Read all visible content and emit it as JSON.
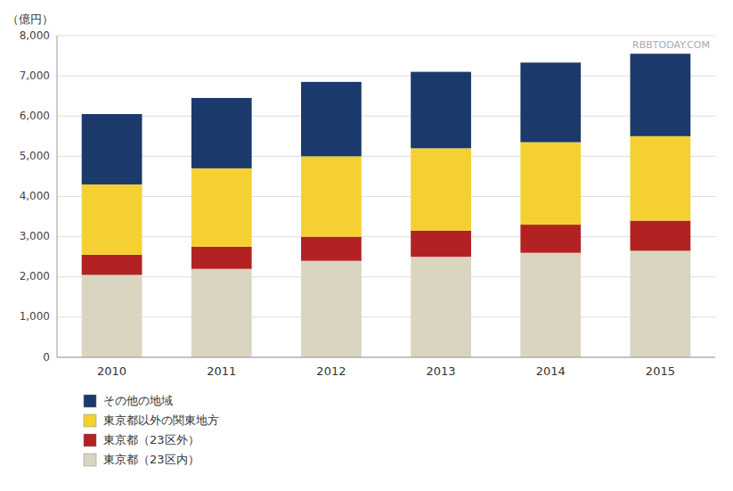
{
  "chart_data": {
    "type": "bar",
    "stacked": true,
    "categories": [
      "2010",
      "2011",
      "2012",
      "2013",
      "2014",
      "2015"
    ],
    "series": [
      {
        "name": "東京都（23区内）",
        "color": "#D9D5C0",
        "values": [
          2050,
          2200,
          2400,
          2500,
          2600,
          2650
        ]
      },
      {
        "name": "東京都（23区外）",
        "color": "#B22222",
        "values": [
          500,
          550,
          600,
          650,
          700,
          750
        ]
      },
      {
        "name": "東京都以外の関東地方",
        "color": "#F5D033",
        "values": [
          1750,
          1950,
          2000,
          2050,
          2050,
          2100
        ]
      },
      {
        "name": "その他の地域",
        "color": "#1B3A6B",
        "values": [
          1750,
          1750,
          1850,
          1900,
          1980,
          2050
        ]
      }
    ],
    "ylabel": "（億円）",
    "annotations": [
      "RBBTODAY.COM"
    ],
    "ylim": [
      0,
      8000
    ],
    "yticks": [
      0,
      {
        "value": 1000,
        "label": "1,000"
      },
      {
        "value": 2000,
        "label": "2,000"
      },
      {
        "value": 3000,
        "label": "3,000"
      },
      {
        "value": 4000,
        "label": "4,000"
      },
      {
        "value": 5000,
        "label": "5,000"
      },
      {
        "value": 6000,
        "label": "6,000"
      },
      {
        "value": 7000,
        "label": "7,000"
      },
      {
        "value": 8000,
        "label": "8,000"
      }
    ],
    "grid": true,
    "legend": "bottom"
  }
}
